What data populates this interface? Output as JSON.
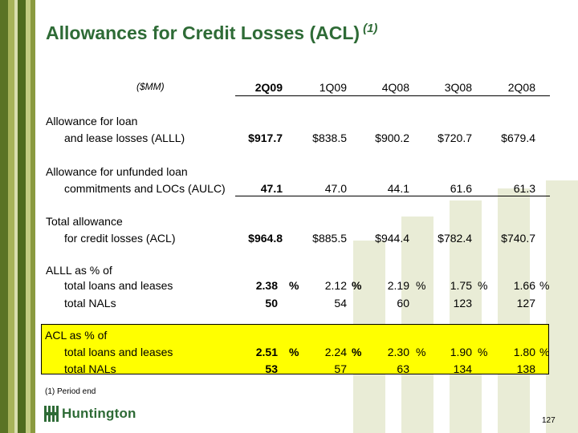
{
  "title": "Allowances for Credit Losses (ACL)",
  "title_footnote": "(1)",
  "units": "($MM)",
  "columns": [
    "2Q09",
    "1Q09",
    "4Q08",
    "3Q08",
    "2Q08"
  ],
  "rows": {
    "alll": {
      "label1": "Allowance for loan",
      "label2": "and lease losses (ALLL)",
      "values": [
        "$917.7",
        "$838.5",
        "$900.2",
        "$720.7",
        "$679.4"
      ]
    },
    "aulc": {
      "label1": "Allowance for unfunded loan",
      "label2": "commitments and LOCs (AULC)",
      "values": [
        "47.1",
        "47.0",
        "44.1",
        "61.6",
        "61.3"
      ]
    },
    "acl": {
      "label1": "Total allowance",
      "label2": "for credit losses (ACL)",
      "values": [
        "$964.8",
        "$885.5",
        "$944.4",
        "$782.4",
        "$740.7"
      ]
    },
    "alll_pct": {
      "heading": "ALLL as % of",
      "loans_label": "total loans and leases",
      "loans_values": [
        "2.38",
        "2.12",
        "2.19",
        "1.75",
        "1.66"
      ],
      "nals_label": "total NALs",
      "nals_values": [
        "50",
        "54",
        "60",
        "123",
        "127"
      ]
    },
    "acl_pct": {
      "heading": "ACL as % of",
      "loans_label": "total loans and leases",
      "loans_values": [
        "2.51",
        "2.24",
        "2.30",
        "1.90",
        "1.80"
      ],
      "nals_label": "total NALs",
      "nals_values": [
        "53",
        "57",
        "63",
        "134",
        "138"
      ]
    }
  },
  "pct_symbol": "%",
  "footnote": "(1)  Period end",
  "logo_text": "Huntington",
  "page_number": "127",
  "colors": {
    "title": "#2e6b36",
    "highlight": "#ffff00",
    "stripe_dark": "#4f6b1f",
    "stripe_light": "#a7b35a"
  }
}
